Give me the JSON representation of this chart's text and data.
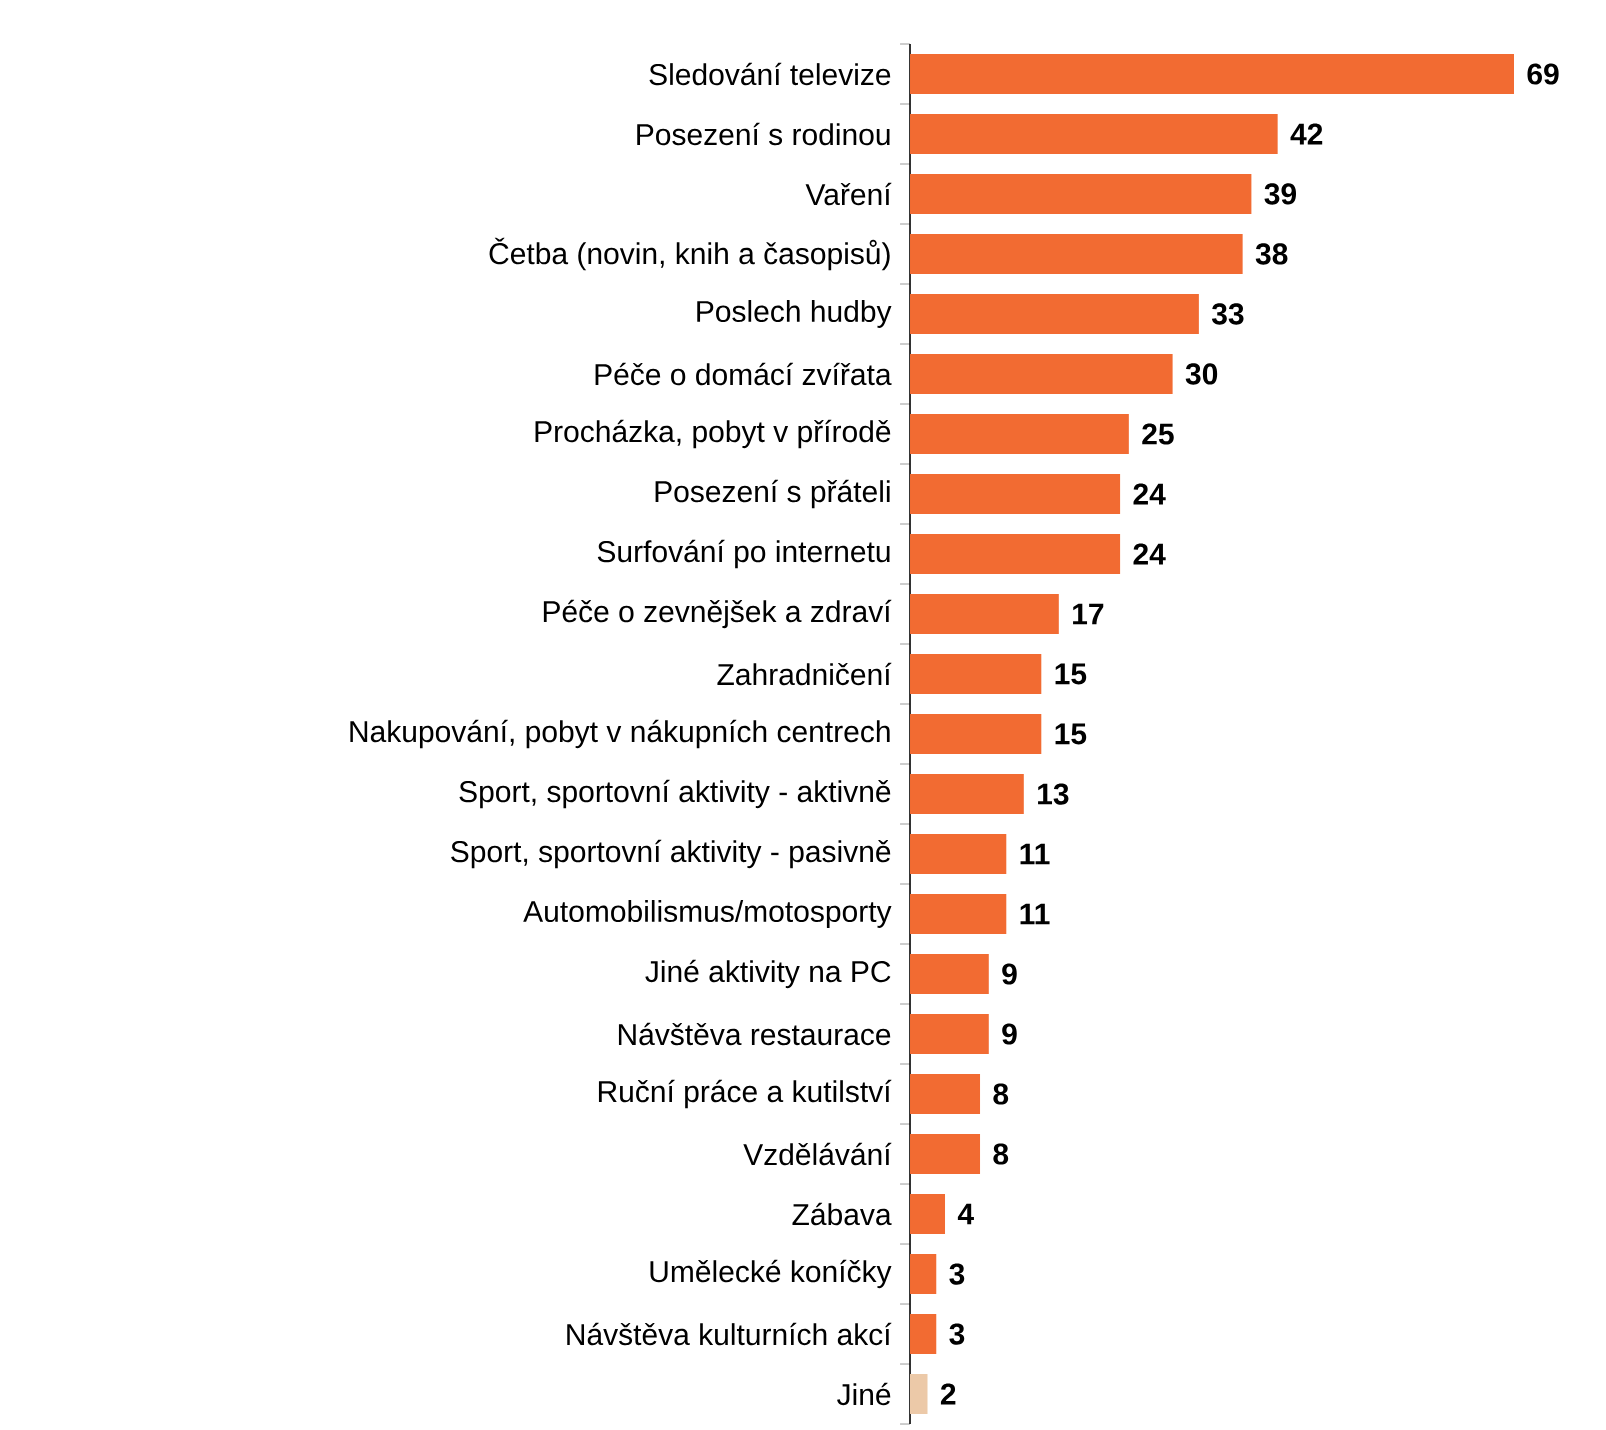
{
  "chart_data": {
    "type": "bar",
    "orientation": "horizontal",
    "data_labels": true,
    "categories": [
      "Sledování televize",
      "Posezení s rodinou",
      "Vaření",
      "Četba (novin, knih a časopisů)",
      "Poslech hudby",
      "Péče o domácí zvířata",
      "Procházka, pobyt v přírodě",
      "Posezení s přáteli",
      "Surfování po internetu",
      "Péče o zevnějšek a zdraví",
      "Zahradničení",
      "Nakupování, pobyt v nákupních centrech",
      "Sport, sportovní aktivity - aktivně",
      "Sport, sportovní aktivity - pasivně",
      "Automobilismus/motosporty",
      "Jiné aktivity na PC",
      "Návštěva restaurace",
      "Ruční práce a kutilství",
      "Vzdělávání",
      "Zábava",
      "Umělecké koníčky",
      "Návštěva kulturních akcí",
      "Jiné"
    ],
    "values": [
      69,
      42,
      39,
      38,
      33,
      30,
      25,
      24,
      24,
      17,
      15,
      15,
      13,
      11,
      11,
      9,
      9,
      8,
      8,
      4,
      3,
      3,
      2
    ],
    "colors": [
      "#f26b32",
      "#f26b32",
      "#f26b32",
      "#f26b32",
      "#f26b32",
      "#f26b32",
      "#f26b32",
      "#f26b32",
      "#f26b32",
      "#f26b32",
      "#f26b32",
      "#f26b32",
      "#f26b32",
      "#f26b32",
      "#f26b32",
      "#f26b32",
      "#f26b32",
      "#f26b32",
      "#f26b32",
      "#f26b32",
      "#f26b32",
      "#f26b32",
      "#ecc9a8"
    ]
  }
}
